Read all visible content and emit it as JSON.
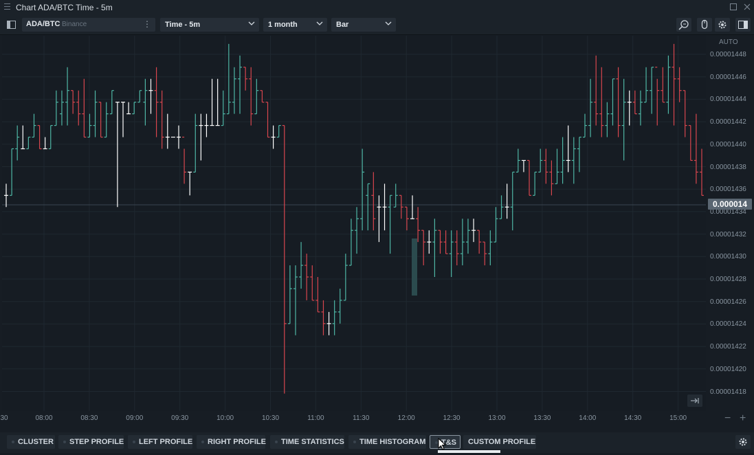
{
  "window": {
    "title": "Chart ADA/BTC Time - 5m"
  },
  "toolbar": {
    "symbol": "ADA/BTC",
    "exchange": "Binance",
    "timeframe": "Time - 5m",
    "period": "1 month",
    "chart_type": "Bar"
  },
  "price_axis": {
    "mode": "AUTO",
    "current_price": "0.000014",
    "labels": [
      "0.00001448",
      "0.00001446",
      "0.00001444",
      "0.00001442",
      "0.00001440",
      "0.00001438",
      "0.00001436",
      "0.00001434",
      "0.00001432",
      "0.00001430",
      "0.00001428",
      "0.00001426",
      "0.00001424",
      "0.00001422",
      "0.00001420",
      "0.00001418"
    ]
  },
  "time_axis": {
    "labels": [
      "30",
      "08:00",
      "08:30",
      "09:00",
      "09:30",
      "10:00",
      "10:30",
      "11:00",
      "11:30",
      "12:00",
      "12:30",
      "13:00",
      "13:30",
      "14:00",
      "14:30",
      "15:00"
    ]
  },
  "bottom_tabs": [
    {
      "label": "CLUSTER"
    },
    {
      "label": "STEP PROFILE"
    },
    {
      "label": "LEFT PROFILE"
    },
    {
      "label": "RIGHT PROFILE"
    },
    {
      "label": "TIME STATISTICS"
    },
    {
      "label": "TIME HISTOGRAM"
    },
    {
      "label": "T&S"
    },
    {
      "label": "CUSTOM PROFILE"
    }
  ],
  "colors": {
    "up": "#4fb7a6",
    "down": "#d9464e",
    "neutral": "#ffffff",
    "background": "#161c23",
    "grid": "#1f2830"
  },
  "chart_data": {
    "type": "ohlc",
    "yrange": [
      1.4165e-05,
      1.4487e-05
    ],
    "bars": [
      [
        1.435e-05,
        1.436e-05,
        1.434e-05,
        1.435e-05
      ],
      [
        1.435e-05,
        1.439e-05,
        1.435e-05,
        1.439e-05
      ],
      [
        1.439e-05,
        1.441e-05,
        1.438e-05,
        1.44e-05
      ],
      [
        1.439e-05,
        1.441e-05,
        1.439e-05,
        1.439e-05
      ],
      [
        1.439e-05,
        1.44e-05,
        1.439e-05,
        1.44e-05
      ],
      [
        1.44e-05,
        1.442e-05,
        1.44e-05,
        1.441e-05
      ],
      [
        1.441e-05,
        1.441e-05,
        1.439e-05,
        1.439e-05
      ],
      [
        1.439e-05,
        1.44e-05,
        1.439e-05,
        1.439e-05
      ],
      [
        1.439e-05,
        1.441e-05,
        1.439e-05,
        1.441e-05
      ],
      [
        1.441e-05,
        1.444e-05,
        1.441e-05,
        1.443e-05
      ],
      [
        1.442e-05,
        1.444e-05,
        1.441e-05,
        1.443e-05
      ],
      [
        1.443e-05,
        1.446e-05,
        1.441e-05,
        1.444e-05
      ],
      [
        1.444e-05,
        1.444e-05,
        1.442e-05,
        1.443e-05
      ],
      [
        1.443e-05,
        1.444e-05,
        1.441e-05,
        1.442e-05
      ],
      [
        1.442e-05,
        1.445e-05,
        1.44e-05,
        1.44e-05
      ],
      [
        1.44e-05,
        1.442e-05,
        1.44e-05,
        1.441e-05
      ],
      [
        1.441e-05,
        1.444e-05,
        1.44e-05,
        1.443e-05
      ],
      [
        1.443e-05,
        1.443e-05,
        1.44e-05,
        1.44e-05
      ],
      [
        1.44e-05,
        1.443e-05,
        1.44e-05,
        1.442e-05
      ],
      [
        1.442e-05,
        1.444e-05,
        1.442e-05,
        1.444e-05
      ],
      [
        1.443e-05,
        1.443e-05,
        1.434e-05,
        1.443e-05
      ],
      [
        1.443e-05,
        1.443e-05,
        1.44e-05,
        1.443e-05
      ],
      [
        1.442e-05,
        1.443e-05,
        1.442e-05,
        1.442e-05
      ],
      [
        1.442e-05,
        1.443e-05,
        1.442e-05,
        1.443e-05
      ],
      [
        1.443e-05,
        1.444e-05,
        1.443e-05,
        1.444e-05
      ],
      [
        1.443e-05,
        1.445e-05,
        1.441e-05,
        1.444e-05
      ],
      [
        1.444e-05,
        1.445e-05,
        1.442e-05,
        1.444e-05
      ],
      [
        1.444e-05,
        1.446e-05,
        1.44e-05,
        1.443e-05
      ],
      [
        1.443e-05,
        1.444e-05,
        1.439e-05,
        1.44e-05
      ],
      [
        1.44e-05,
        1.442e-05,
        1.439e-05,
        1.44e-05
      ],
      [
        1.44e-05,
        1.44e-05,
        1.44e-05,
        1.44e-05
      ],
      [
        1.44e-05,
        1.441e-05,
        1.439e-05,
        1.44e-05
      ],
      [
        1.44e-05,
        1.439e-05,
        1.436e-05,
        1.437e-05
      ],
      [
        1.437e-05,
        1.437e-05,
        1.435e-05,
        1.437e-05
      ],
      [
        1.437e-05,
        1.442e-05,
        1.437e-05,
        1.441e-05
      ],
      [
        1.441e-05,
        1.442e-05,
        1.438e-05,
        1.441e-05
      ],
      [
        1.441e-05,
        1.442e-05,
        1.44e-05,
        1.441e-05
      ],
      [
        1.441e-05,
        1.445e-05,
        1.441e-05,
        1.441e-05
      ],
      [
        1.441e-05,
        1.445e-05,
        1.441e-05,
        1.441e-05
      ],
      [
        1.441e-05,
        1.444e-05,
        1.441e-05,
        1.442e-05
      ],
      [
        1.442e-05,
        1.448e-05,
        1.442e-05,
        1.443e-05
      ],
      [
        1.443e-05,
        1.446e-05,
        1.442e-05,
        1.445e-05
      ],
      [
        1.445e-05,
        1.447e-05,
        1.442e-05,
        1.446e-05
      ],
      [
        1.446e-05,
        1.446e-05,
        1.444e-05,
        1.445e-05
      ],
      [
        1.445e-05,
        1.446e-05,
        1.441e-05,
        1.442e-05
      ],
      [
        1.442e-05,
        1.445e-05,
        1.442e-05,
        1.444e-05
      ],
      [
        1.444e-05,
        1.444e-05,
        1.443e-05,
        1.443e-05
      ],
      [
        1.443e-05,
        1.443e-05,
        1.44e-05,
        1.44e-05
      ],
      [
        1.44e-05,
        1.441e-05,
        1.439e-05,
        1.44e-05
      ],
      [
        1.44e-05,
        1.441e-05,
        1.44e-05,
        1.441e-05
      ],
      [
        1.441e-05,
        1.441e-05,
        1.418e-05,
        1.424e-05
      ],
      [
        1.424e-05,
        1.429e-05,
        1.424e-05,
        1.427e-05
      ],
      [
        1.427e-05,
        1.429e-05,
        1.423e-05,
        1.428e-05
      ],
      [
        1.428e-05,
        1.431e-05,
        1.427e-05,
        1.429e-05
      ],
      [
        1.429e-05,
        1.43e-05,
        1.426e-05,
        1.428e-05
      ],
      [
        1.428e-05,
        1.429e-05,
        1.426e-05,
        1.426e-05
      ],
      [
        1.426e-05,
        1.428e-05,
        1.425e-05,
        1.425e-05
      ],
      [
        1.425e-05,
        1.426e-05,
        1.423e-05,
        1.424e-05
      ],
      [
        1.424e-05,
        1.425e-05,
        1.423e-05,
        1.424e-05
      ],
      [
        1.424e-05,
        1.426e-05,
        1.423e-05,
        1.425e-05
      ],
      [
        1.425e-05,
        1.427e-05,
        1.424e-05,
        1.426e-05
      ],
      [
        1.426e-05,
        1.43e-05,
        1.426e-05,
        1.429e-05
      ],
      [
        1.429e-05,
        1.433e-05,
        1.429e-05,
        1.432e-05
      ],
      [
        1.432e-05,
        1.434e-05,
        1.43e-05,
        1.433e-05
      ],
      [
        1.433e-05,
        1.439e-05,
        1.432e-05,
        1.437e-05
      ],
      [
        1.435e-05,
        1.436e-05,
        1.432e-05,
        1.436e-05
      ],
      [
        1.435e-05,
        1.437e-05,
        1.432e-05,
        1.433e-05
      ],
      [
        1.434e-05,
        1.435e-05,
        1.431e-05,
        1.434e-05
      ],
      [
        1.434e-05,
        1.436e-05,
        1.432e-05,
        1.434e-05
      ],
      [
        1.434e-05,
        1.435e-05,
        1.43e-05,
        1.435e-05
      ],
      [
        1.434e-05,
        1.436e-05,
        1.434e-05,
        1.435e-05
      ],
      [
        1.435e-05,
        1.435e-05,
        1.433e-05,
        1.434e-05
      ],
      [
        1.434e-05,
        1.434e-05,
        1.432e-05,
        1.433e-05
      ],
      [
        1.433e-05,
        1.435e-05,
        1.433e-05,
        1.433e-05
      ],
      [
        1.433e-05,
        1.434e-05,
        1.431e-05,
        1.432e-05
      ],
      [
        1.432e-05,
        1.432e-05,
        1.429e-05,
        1.431e-05
      ],
      [
        1.431e-05,
        1.432e-05,
        1.43e-05,
        1.431e-05
      ],
      [
        1.431e-05,
        1.433e-05,
        1.428e-05,
        1.432e-05
      ],
      [
        1.432e-05,
        1.432e-05,
        1.43e-05,
        1.431e-05
      ],
      [
        1.431e-05,
        1.432e-05,
        1.43e-05,
        1.43e-05
      ],
      [
        1.43e-05,
        1.432e-05,
        1.428e-05,
        1.431e-05
      ],
      [
        1.431e-05,
        1.432e-05,
        1.429e-05,
        1.43e-05
      ],
      [
        1.43e-05,
        1.433e-05,
        1.429e-05,
        1.431e-05
      ],
      [
        1.431e-05,
        1.433e-05,
        1.43e-05,
        1.432e-05
      ],
      [
        1.432e-05,
        1.433e-05,
        1.431e-05,
        1.432e-05
      ],
      [
        1.432e-05,
        1.432e-05,
        1.43e-05,
        1.431e-05
      ],
      [
        1.431e-05,
        1.431e-05,
        1.429e-05,
        1.43e-05
      ],
      [
        1.43e-05,
        1.432e-05,
        1.429e-05,
        1.431e-05
      ],
      [
        1.431e-05,
        1.434e-05,
        1.431e-05,
        1.433e-05
      ],
      [
        1.433e-05,
        1.435e-05,
        1.433e-05,
        1.434e-05
      ],
      [
        1.434e-05,
        1.436e-05,
        1.433e-05,
        1.434e-05
      ],
      [
        1.434e-05,
        1.437e-05,
        1.432e-05,
        1.437e-05
      ],
      [
        1.437e-05,
        1.439e-05,
        1.437e-05,
        1.438e-05
      ],
      [
        1.438e-05,
        1.438e-05,
        1.437e-05,
        1.438e-05
      ],
      [
        1.438e-05,
        1.438e-05,
        1.435e-05,
        1.435e-05
      ],
      [
        1.435e-05,
        1.437e-05,
        1.435e-05,
        1.437e-05
      ],
      [
        1.437e-05,
        1.439e-05,
        1.437e-05,
        1.438e-05
      ],
      [
        1.438e-05,
        1.439e-05,
        1.436e-05,
        1.437e-05
      ],
      [
        1.437e-05,
        1.438e-05,
        1.435e-05,
        1.436e-05
      ],
      [
        1.436e-05,
        1.439e-05,
        1.436e-05,
        1.437e-05
      ],
      [
        1.437e-05,
        1.44e-05,
        1.436e-05,
        1.438e-05
      ],
      [
        1.438e-05,
        1.441e-05,
        1.437e-05,
        1.438e-05
      ],
      [
        1.438e-05,
        1.44e-05,
        1.436e-05,
        1.439e-05
      ],
      [
        1.439e-05,
        1.44e-05,
        1.437e-05,
        1.44e-05
      ],
      [
        1.44e-05,
        1.442e-05,
        1.44e-05,
        1.441e-05
      ],
      [
        1.441e-05,
        1.445e-05,
        1.44e-05,
        1.443e-05
      ],
      [
        1.443e-05,
        1.447e-05,
        1.441e-05,
        1.442e-05
      ],
      [
        1.442e-05,
        1.446e-05,
        1.44e-05,
        1.441e-05
      ],
      [
        1.441e-05,
        1.443e-05,
        1.44e-05,
        1.442e-05
      ],
      [
        1.442e-05,
        1.445e-05,
        1.441e-05,
        1.445e-05
      ],
      [
        1.445e-05,
        1.446e-05,
        1.44e-05,
        1.441e-05
      ],
      [
        1.441e-05,
        1.445e-05,
        1.438e-05,
        1.443e-05
      ],
      [
        1.443e-05,
        1.444e-05,
        1.441e-05,
        1.443e-05
      ],
      [
        1.443e-05,
        1.444e-05,
        1.442e-05,
        1.442e-05
      ],
      [
        1.442e-05,
        1.444e-05,
        1.441e-05,
        1.443e-05
      ],
      [
        1.443e-05,
        1.446e-05,
        1.443e-05,
        1.444e-05
      ],
      [
        1.444e-05,
        1.446e-05,
        1.442e-05,
        1.446e-05
      ],
      [
        1.446e-05,
        1.445e-05,
        1.441e-05,
        1.444e-05
      ],
      [
        1.444e-05,
        1.446e-05,
        1.443e-05,
        1.443e-05
      ],
      [
        1.443e-05,
        1.447e-05,
        1.442e-05,
        1.446e-05
      ],
      [
        1.446e-05,
        1.448e-05,
        1.441e-05,
        1.445e-05
      ],
      [
        1.445e-05,
        1.446e-05,
        1.443e-05,
        1.444e-05
      ],
      [
        1.444e-05,
        1.444e-05,
        1.44e-05,
        1.441e-05
      ],
      [
        1.441e-05,
        1.441e-05,
        1.438e-05,
        1.438e-05
      ],
      [
        1.438e-05,
        1.442e-05,
        1.436e-05,
        1.437e-05
      ],
      [
        1.437e-05,
        1.439e-05,
        1.435e-05,
        1.435e-05
      ]
    ]
  }
}
